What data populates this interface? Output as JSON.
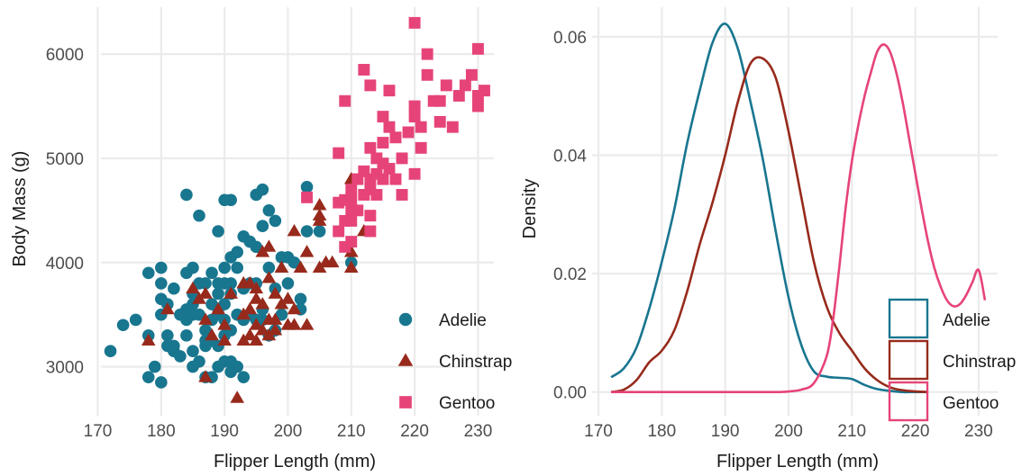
{
  "colors": {
    "Adelie": "#18768f",
    "Chinstrap": "#972a1c",
    "Gentoo": "#e64478",
    "grid": "#ebebeb"
  },
  "chart_data": [
    {
      "type": "scatter",
      "xlabel": "Flipper Length (mm)",
      "ylabel": "Body Mass (g)",
      "xlim": [
        170.5,
        232.5
      ],
      "ylim": [
        2530,
        6450
      ],
      "x_ticks": [
        170,
        180,
        190,
        200,
        210,
        220,
        230
      ],
      "y_ticks": [
        3000,
        4000,
        5000,
        6000
      ],
      "grid": true,
      "legend_position": "bottom-right",
      "series": [
        {
          "name": "Adelie",
          "marker": "circle",
          "points": [
            [
              172,
              3150
            ],
            [
              174,
              3400
            ],
            [
              176,
              3450
            ],
            [
              178,
              3900
            ],
            [
              178,
              3300
            ],
            [
              178,
              2900
            ],
            [
              179,
              3000
            ],
            [
              180,
              3950
            ],
            [
              180,
              3800
            ],
            [
              180,
              3650
            ],
            [
              180,
              3500
            ],
            [
              180,
              2850
            ],
            [
              181,
              3600
            ],
            [
              181,
              3300
            ],
            [
              181,
              3200
            ],
            [
              182,
              3750
            ],
            [
              182,
              3150
            ],
            [
              182,
              3200
            ],
            [
              183,
              3500
            ],
            [
              183,
              3100
            ],
            [
              184,
              3900
            ],
            [
              184,
              4650
            ],
            [
              184,
              3550
            ],
            [
              184,
              3450
            ],
            [
              184,
              3300
            ],
            [
              185,
              3950
            ],
            [
              185,
              3700
            ],
            [
              185,
              3600
            ],
            [
              185,
              3500
            ],
            [
              185,
              3150
            ],
            [
              185,
              3000
            ],
            [
              186,
              4450
            ],
            [
              186,
              3800
            ],
            [
              186,
              3500
            ],
            [
              186,
              3050
            ],
            [
              187,
              3800
            ],
            [
              187,
              3350
            ],
            [
              187,
              3250
            ],
            [
              187,
              3200
            ],
            [
              187,
              2900
            ],
            [
              188,
              3900
            ],
            [
              188,
              3600
            ],
            [
              188,
              3450
            ],
            [
              188,
              3250
            ],
            [
              188,
              2900
            ],
            [
              189,
              4300
            ],
            [
              189,
              3800
            ],
            [
              189,
              3700
            ],
            [
              189,
              3550
            ],
            [
              189,
              3500
            ],
            [
              189,
              3200
            ],
            [
              189,
              3000
            ],
            [
              190,
              4600
            ],
            [
              190,
              3950
            ],
            [
              190,
              3800
            ],
            [
              190,
              3600
            ],
            [
              190,
              3450
            ],
            [
              190,
              3300
            ],
            [
              190,
              3050
            ],
            [
              191,
              4600
            ],
            [
              191,
              4050
            ],
            [
              191,
              3800
            ],
            [
              191,
              3700
            ],
            [
              191,
              3350
            ],
            [
              191,
              3050
            ],
            [
              191,
              2950
            ],
            [
              192,
              4100
            ],
            [
              192,
              3950
            ],
            [
              192,
              3500
            ],
            [
              192,
              3000
            ],
            [
              193,
              4250
            ],
            [
              193,
              3750
            ],
            [
              193,
              3450
            ],
            [
              193,
              2900
            ],
            [
              194,
              4200
            ],
            [
              194,
              3800
            ],
            [
              194,
              3500
            ],
            [
              195,
              4650
            ],
            [
              195,
              4150
            ],
            [
              195,
              3800
            ],
            [
              195,
              3450
            ],
            [
              196,
              4700
            ],
            [
              196,
              4350
            ],
            [
              196,
              3550
            ],
            [
              196,
              3450
            ],
            [
              197,
              4500
            ],
            [
              197,
              3950
            ],
            [
              197,
              3300
            ],
            [
              198,
              4400
            ],
            [
              198,
              3750
            ],
            [
              198,
              3350
            ],
            [
              199,
              4050
            ],
            [
              199,
              3500
            ],
            [
              200,
              4050
            ],
            [
              200,
              3800
            ],
            [
              201,
              4000
            ],
            [
              202,
              3550
            ],
            [
              202,
              3650
            ],
            [
              203,
              4725
            ],
            [
              203,
              4300
            ],
            [
              205,
              4300
            ],
            [
              210,
              4000
            ]
          ]
        },
        {
          "name": "Chinstrap",
          "marker": "triangle",
          "points": [
            [
              178,
              3250
            ],
            [
              181,
              3550
            ],
            [
              185,
              3750
            ],
            [
              186,
              3650
            ],
            [
              187,
              3700
            ],
            [
              187,
              3450
            ],
            [
              187,
              2900
            ],
            [
              188,
              3300
            ],
            [
              189,
              3550
            ],
            [
              190,
              3400
            ],
            [
              190,
              3250
            ],
            [
              191,
              3700
            ],
            [
              192,
              2700
            ],
            [
              193,
              3800
            ],
            [
              193,
              3500
            ],
            [
              193,
              3250
            ],
            [
              194,
              3800
            ],
            [
              194,
              3550
            ],
            [
              194,
              3300
            ],
            [
              195,
              3750
            ],
            [
              195,
              3650
            ],
            [
              195,
              3400
            ],
            [
              195,
              3250
            ],
            [
              196,
              4100
            ],
            [
              196,
              3600
            ],
            [
              196,
              3350
            ],
            [
              197,
              4150
            ],
            [
              197,
              3850
            ],
            [
              197,
              3450
            ],
            [
              197,
              3300
            ],
            [
              198,
              3700
            ],
            [
              198,
              3450
            ],
            [
              198,
              3350
            ],
            [
              199,
              3950
            ],
            [
              199,
              3600
            ],
            [
              200,
              3650
            ],
            [
              200,
              3400
            ],
            [
              201,
              4300
            ],
            [
              201,
              3550
            ],
            [
              201,
              3400
            ],
            [
              202,
              3950
            ],
            [
              203,
              4100
            ],
            [
              203,
              3400
            ],
            [
              205,
              4400
            ],
            [
              205,
              4450
            ],
            [
              205,
              4550
            ],
            [
              205,
              3950
            ],
            [
              206,
              4000
            ],
            [
              207,
              4000
            ],
            [
              210,
              4800
            ],
            [
              210,
              4100
            ],
            [
              210,
              3950
            ],
            [
              212,
              4300
            ]
          ]
        },
        {
          "name": "Gentoo",
          "marker": "square",
          "points": [
            [
              203,
              4625
            ],
            [
              208,
              4575
            ],
            [
              208,
              4300
            ],
            [
              209,
              4150
            ],
            [
              209,
              4600
            ],
            [
              209,
              4400
            ],
            [
              210,
              4200
            ],
            [
              210,
              4700
            ],
            [
              210,
              4500
            ],
            [
              210,
              4400
            ],
            [
              210,
              4600
            ],
            [
              211,
              4800
            ],
            [
              211,
              4500
            ],
            [
              212,
              4875
            ],
            [
              212,
              4650
            ],
            [
              213,
              4800
            ],
            [
              213,
              4300
            ],
            [
              213,
              4450
            ],
            [
              213,
              5100
            ],
            [
              213,
              4700
            ],
            [
              214,
              4850
            ],
            [
              214,
              4650
            ],
            [
              214,
              5000
            ],
            [
              215,
              4950
            ],
            [
              215,
              4800
            ],
            [
              215,
              5150
            ],
            [
              215,
              5400
            ],
            [
              216,
              4900
            ],
            [
              216,
              5300
            ],
            [
              217,
              5200
            ],
            [
              217,
              4800
            ],
            [
              218,
              4650
            ],
            [
              218,
              5000
            ],
            [
              219,
              5250
            ],
            [
              220,
              5400
            ],
            [
              220,
              4850
            ],
            [
              221,
              5300
            ],
            [
              221,
              5100
            ],
            [
              222,
              5800
            ],
            [
              223,
              5550
            ],
            [
              224,
              5350
            ],
            [
              225,
              5700
            ],
            [
              226,
              5300
            ],
            [
              228,
              5700
            ],
            [
              229,
              5800
            ],
            [
              230,
              5600
            ],
            [
              230,
              6050
            ],
            [
              230,
              5500
            ],
            [
              208,
              5050
            ],
            [
              209,
              5550
            ],
            [
              212,
              5850
            ],
            [
              213,
              5700
            ],
            [
              216,
              5650
            ],
            [
              220,
              6300
            ],
            [
              220,
              5500
            ],
            [
              222,
              6000
            ],
            [
              224,
              5550
            ],
            [
              227,
              5600
            ],
            [
              231,
              5650
            ]
          ]
        }
      ]
    },
    {
      "type": "line",
      "subtype": "density",
      "xlabel": "Flipper Length (mm)",
      "ylabel": "Density",
      "xlim": [
        169,
        233
      ],
      "ylim": [
        -0.004,
        0.065
      ],
      "x_ticks": [
        170,
        180,
        190,
        200,
        210,
        220,
        230
      ],
      "y_ticks": [
        0.0,
        0.02,
        0.04,
        0.06
      ],
      "y_tick_labels": [
        "0.00",
        "0.02",
        "0.04",
        "0.06"
      ],
      "grid": true,
      "legend_position": "bottom-right",
      "series": [
        {
          "name": "Adelie",
          "x": [
            172,
            174,
            176,
            178,
            180,
            182,
            184,
            186,
            188,
            190,
            192,
            194,
            196,
            198,
            200,
            202,
            204,
            206,
            208,
            210,
            212,
            214,
            216,
            218,
            220,
            222
          ],
          "y": [
            0.0025,
            0.004,
            0.0075,
            0.014,
            0.022,
            0.031,
            0.042,
            0.051,
            0.059,
            0.0622,
            0.058,
            0.049,
            0.039,
            0.027,
            0.016,
            0.008,
            0.0035,
            0.0026,
            0.0024,
            0.0022,
            0.0012,
            0.0005,
            0.0002,
            0.0,
            0.0,
            0.0
          ]
        },
        {
          "name": "Chinstrap",
          "x": [
            172,
            174,
            176,
            178,
            180,
            182,
            184,
            186,
            188,
            190,
            192,
            194,
            196,
            198,
            200,
            202,
            204,
            206,
            208,
            210,
            212,
            214,
            216,
            218,
            220,
            222
          ],
          "y": [
            0.0,
            0.0004,
            0.002,
            0.005,
            0.007,
            0.0105,
            0.017,
            0.025,
            0.032,
            0.04,
            0.049,
            0.0555,
            0.0563,
            0.053,
            0.044,
            0.033,
            0.022,
            0.0145,
            0.01,
            0.007,
            0.004,
            0.002,
            0.0008,
            0.0003,
            0.0001,
            0.0
          ]
        },
        {
          "name": "Gentoo",
          "x": [
            172,
            190,
            198,
            200,
            202,
            204,
            206,
            207,
            208,
            209,
            210,
            211,
            212,
            213,
            214,
            215,
            216,
            217,
            218,
            219,
            220,
            221,
            222,
            223,
            224,
            225,
            226,
            227,
            228,
            229,
            230,
            231
          ],
          "y": [
            0.0,
            0.0,
            0.0,
            0.0001,
            0.0004,
            0.0015,
            0.006,
            0.012,
            0.021,
            0.031,
            0.039,
            0.045,
            0.05,
            0.054,
            0.0575,
            0.0587,
            0.0575,
            0.054,
            0.049,
            0.043,
            0.037,
            0.031,
            0.0255,
            0.021,
            0.0178,
            0.0155,
            0.0145,
            0.0148,
            0.0163,
            0.0185,
            0.0206,
            0.0155
          ]
        }
      ]
    }
  ]
}
